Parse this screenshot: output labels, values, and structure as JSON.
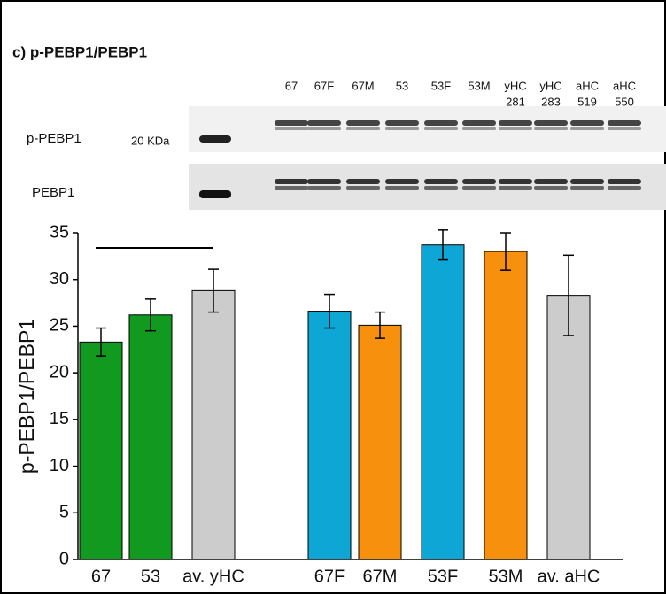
{
  "title": "c) p-PEBP1/PEBP1",
  "blot": {
    "lanes": [
      [
        "67"
      ],
      [
        "67F"
      ],
      [
        "67M"
      ],
      [
        "53"
      ],
      [
        "53F"
      ],
      [
        "53M"
      ],
      [
        "yHC",
        "281"
      ],
      [
        "yHC",
        "283"
      ],
      [
        "aHC",
        "519"
      ],
      [
        "aHC",
        "550"
      ]
    ],
    "rows": [
      "p-PEBP1",
      "PEBP1"
    ],
    "marker": "20 KDa"
  },
  "chart_data": {
    "type": "bar",
    "y_label": "p-PEBP1/PEBP1",
    "categories": [
      "67",
      "53",
      "av. yHC",
      null,
      "67F",
      "67M",
      "53F",
      "53M",
      "av. aHC"
    ],
    "values": [
      23.3,
      26.2,
      28.8,
      null,
      26.6,
      25.1,
      33.7,
      33.0,
      28.3
    ],
    "errors": [
      1.5,
      1.7,
      2.3,
      null,
      1.8,
      1.4,
      1.6,
      2.0,
      4.3
    ],
    "colors": [
      "#119a1f",
      "#119a1f",
      "#cccccc",
      null,
      "#0ea6d4",
      "#f7900c",
      "#0ea6d4",
      "#f7900c",
      "#cccccc"
    ],
    "ylim": [
      0,
      35
    ],
    "yticks": [
      0,
      5,
      10,
      15,
      20,
      25,
      30,
      35
    ]
  }
}
